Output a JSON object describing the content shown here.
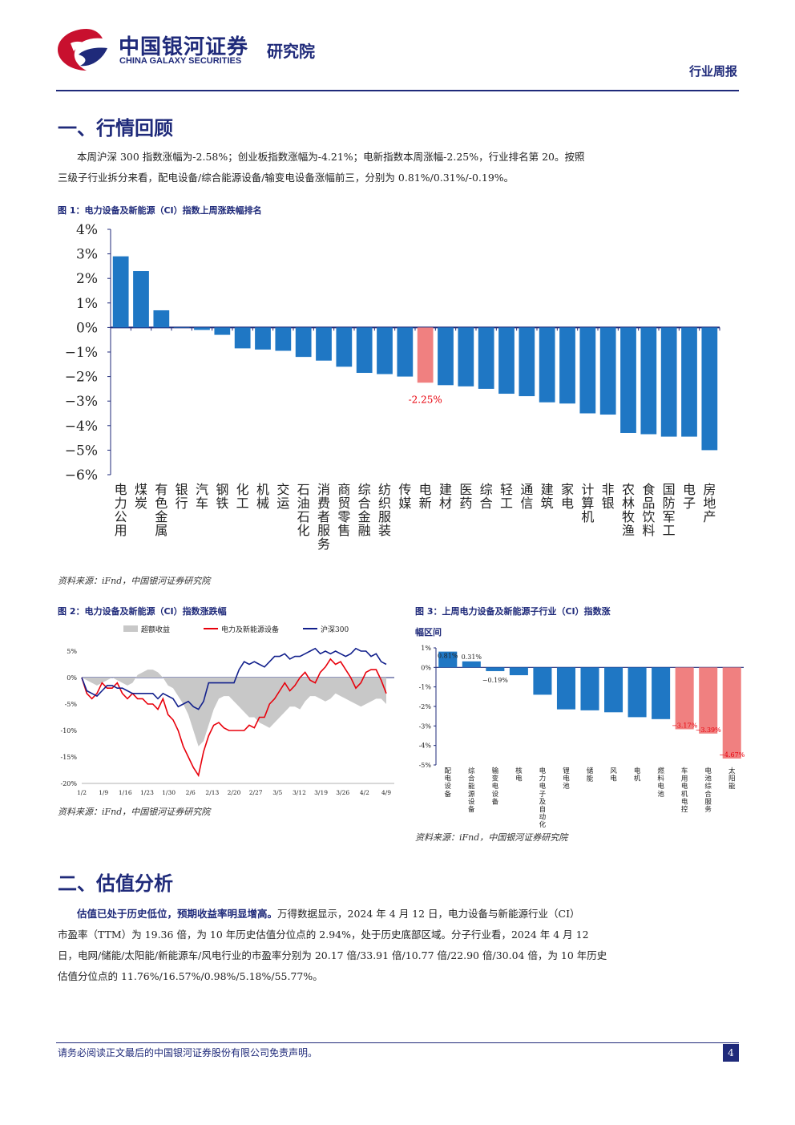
{
  "header": {
    "brand_cn": "中国银河证券",
    "brand_en": "CHINA GALAXY SECURITIES",
    "institute": "研究院",
    "doc_type": "行业周报"
  },
  "section1": {
    "title": "一、行情回顾",
    "para1": "本周沪深 300 指数涨幅为-2.58%；创业板指数涨幅为-4.21%；电新指数本周涨幅-2.25%，行业排名第 20。按照",
    "para2": "三级子行业拆分来看，配电设备/综合能源设备/输变电设备涨幅前三，分别为 0.81%/0.31%/-0.19%。"
  },
  "fig1": {
    "title": "图 1：电力设备及新能源（CI）指数上周涨跌幅排名",
    "source": "资料来源：iFnd，中国银河证券研究院",
    "highlight_label": "-2.25%"
  },
  "fig2": {
    "title": "图 2：电力设备及新能源（CI）指数涨跌幅",
    "source": "资料来源：iFnd，中国银河证券研究院",
    "legend": [
      "超额收益",
      "电力及新能源设备",
      "沪深300"
    ]
  },
  "fig3": {
    "title_line1": "图 3：上周电力设备及新能源子行业（CI）指数涨",
    "title_line2": "幅区间",
    "source": "资料来源：iFnd，中国银河证券研究院"
  },
  "section2": {
    "title": "二、估值分析",
    "bold_lead": "估值已处于历史低位，预期收益率明显增高。",
    "para1": "万得数据显示，2024 年 4 月 12 日，电力设备与新能源行业（CI）",
    "para2": "市盈率（TTM）为 19.36 倍，为 10 年历史估值分位点的 2.94%，处于历史底部区域。分子行业看，2024 年 4 月 12",
    "para3": "日，电网/储能/太阳能/新能源车/风电行业的市盈率分别为 20.17 倍/33.91 倍/10.77 倍/22.90 倍/30.04 倍，为 10 年历史",
    "para4": "估值分位点的 11.76%/16.57%/0.98%/5.18%/55.77%。"
  },
  "footer": {
    "disclaimer": "请务必阅读正文最后的中国银河证券股份有限公司免责声明。",
    "page": "4"
  },
  "chart_data": [
    {
      "type": "bar",
      "categories": [
        "电力公用",
        "煤炭",
        "有色金属",
        "银行",
        "汽车",
        "钢铁",
        "化工",
        "机械",
        "交运",
        "石油石化",
        "消费者服务",
        "商贸零售",
        "综合金融",
        "纺织服装",
        "传媒",
        "电新",
        "建材",
        "医药",
        "综合",
        "轻工",
        "通信",
        "建筑",
        "家电",
        "计算机",
        "非银",
        "农林牧渔",
        "食品饮料",
        "国防军工",
        "电子",
        "房地产"
      ],
      "values": [
        2.9,
        2.3,
        0.7,
        0.0,
        -0.1,
        -0.3,
        -0.85,
        -0.9,
        -0.95,
        -1.2,
        -1.35,
        -1.6,
        -1.85,
        -1.9,
        -2.0,
        -2.25,
        -2.35,
        -2.4,
        -2.5,
        -2.7,
        -2.8,
        -3.05,
        -3.1,
        -3.5,
        -3.55,
        -4.3,
        -4.35,
        -4.45,
        -4.45,
        -5.0
      ],
      "highlight_index": 15,
      "ylim": [
        -6,
        4
      ],
      "yticks": [
        "4%",
        "3%",
        "2%",
        "1%",
        "0%",
        "−1%",
        "−2%",
        "−3%",
        "−4%",
        "−5%",
        "−6%"
      ],
      "colors": {
        "bar": "#1f77c4",
        "highlight": "#f08080",
        "axis": "#1f2a7a"
      }
    },
    {
      "type": "line",
      "x_ticks": [
        "1/2",
        "1/9",
        "1/16",
        "1/23",
        "1/30",
        "2/6",
        "2/13",
        "2/20",
        "2/27",
        "3/5",
        "3/12",
        "3/19",
        "3/26",
        "4/2",
        "4/9"
      ],
      "ylim": [
        -20,
        5
      ],
      "yticks": [
        "5%",
        "0%",
        "-5%",
        "-10%",
        "-15%",
        "-20%"
      ],
      "series": [
        {
          "name": "超额收益",
          "style": "area",
          "color": "#c8c8c8",
          "values": [
            0,
            -0.5,
            -1.0,
            -1.5,
            -1,
            -0.5,
            0,
            -0.5,
            -1,
            -1.5,
            -1,
            0.5,
            1,
            1.5,
            1.5,
            1,
            0,
            -1.5,
            -2,
            -3.5,
            -5,
            -7,
            -10,
            -13,
            -12,
            -9,
            -6,
            -4,
            -3.5,
            -3.5,
            -4.5,
            -5.5,
            -6.5,
            -7.5,
            -7.5,
            -8.5,
            -9,
            -9.5,
            -8.5,
            -7.5,
            -6.5,
            -5.5,
            -5.5,
            -6,
            -4.5,
            -3.5,
            -3.5,
            -4,
            -4.5,
            -4,
            -3,
            -3.5,
            -4,
            -4.5,
            -5,
            -5.5,
            -5,
            -4.5,
            -4,
            -4,
            -5
          ]
        },
        {
          "name": "电力及新能源设备",
          "style": "line",
          "color": "#e8000b",
          "values": [
            0,
            -3,
            -4,
            -3,
            -1,
            -2,
            -2,
            -1,
            -3,
            -4,
            -3,
            -4,
            -4,
            -5,
            -5,
            -6,
            -4,
            -7,
            -8,
            -10,
            -13,
            -15,
            -17,
            -18.5,
            -14,
            -11,
            -9,
            -8.5,
            -9.5,
            -10,
            -10,
            -10,
            -10,
            -9,
            -9.5,
            -7.5,
            -7.5,
            -5,
            -4,
            -2.5,
            -1,
            -2.5,
            -1.5,
            0,
            1,
            -0.5,
            -1,
            1,
            2,
            3.5,
            2.5,
            3,
            1.5,
            0,
            -2,
            -1,
            1,
            1.5,
            1.5,
            -0.5,
            -3
          ]
        },
        {
          "name": "沪深300",
          "style": "line",
          "color": "#12208c",
          "values": [
            0,
            -2.5,
            -3,
            -3.5,
            -2.5,
            -1.5,
            -1.5,
            -2,
            -2,
            -2.5,
            -3,
            -3,
            -3,
            -3,
            -3,
            -4,
            -3,
            -3.5,
            -4,
            -5.5,
            -5,
            -4.5,
            -5.5,
            -6,
            -4.5,
            -1,
            -1,
            -1,
            -1,
            -1,
            -1,
            1.5,
            3,
            2.5,
            3,
            2.5,
            2,
            3,
            4,
            4,
            4.5,
            3.5,
            4,
            4,
            4.5,
            5,
            5.5,
            4.5,
            5,
            4.5,
            5,
            4.5,
            4,
            4.5,
            5.5,
            5,
            5,
            4,
            4.5,
            3,
            2.5
          ]
        }
      ]
    },
    {
      "type": "bar",
      "categories": [
        "配电设备",
        "综合能源设备",
        "输变电设备",
        "核电",
        "电力电子及自动化",
        "锂电池",
        "储能",
        "风电",
        "电机",
        "燃料电池",
        "车用电机电控",
        "电池综合服务",
        "太阳能"
      ],
      "values": [
        0.81,
        0.31,
        -0.19,
        -0.4,
        -1.4,
        -2.15,
        -2.2,
        -2.3,
        -2.55,
        -2.65,
        -3.17,
        -3.39,
        -4.67
      ],
      "labels": [
        "0.81%",
        "0.31%",
        "−0.19%",
        "",
        "",
        "",
        "",
        "",
        "",
        "",
        "−3.17%",
        "−3.39%",
        "−4.67%"
      ],
      "ylim": [
        -5,
        1
      ],
      "yticks": [
        "1%",
        "0%",
        "-1%",
        "-2%",
        "-3%",
        "-4%",
        "-5%"
      ],
      "colors": {
        "bar": "#1f77c4",
        "highlight": "#f08080",
        "axis": "#1f2a7a"
      },
      "highlight_indices": [
        10,
        11,
        12
      ]
    }
  ]
}
